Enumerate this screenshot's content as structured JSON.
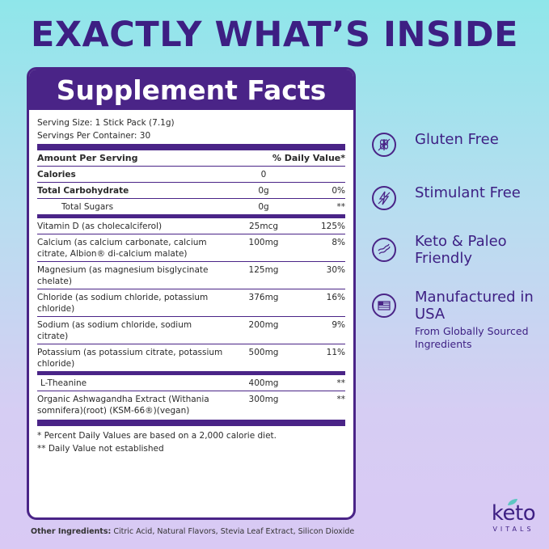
{
  "headline": "EXACTLY WHAT’S INSIDE",
  "facts": {
    "title": "Supplement Facts",
    "serving_size": "Serving Size: 1 Stick Pack (7.1g)",
    "servings_per_container": "Servings Per Container: 30",
    "header_amount": "Amount Per Serving",
    "header_dv": "% Daily Value*",
    "rows": [
      {
        "name": "Calories",
        "amount": "0",
        "dv": ""
      },
      {
        "name": "Total Carbohydrate",
        "amount": "0g",
        "dv": "0%"
      },
      {
        "name": "Total Sugars",
        "amount": "0g",
        "dv": "**"
      },
      {
        "name": "Vitamin D (as cholecalciferol)",
        "amount": "25mcg",
        "dv": "125%"
      },
      {
        "name": "Calcium (as calcium carbonate, calcium citrate, Albion® di-calcium malate)",
        "amount": "100mg",
        "dv": "8%"
      },
      {
        "name": "Magnesium (as magnesium bisglycinate chelate)",
        "amount": "125mg",
        "dv": "30%"
      },
      {
        "name": "Chloride (as sodium chloride, potassium chloride)",
        "amount": "376mg",
        "dv": "16%"
      },
      {
        "name": "Sodium (as sodium chloride, sodium citrate)",
        "amount": "200mg",
        "dv": "9%"
      },
      {
        "name": "Potassium (as potassium citrate, potassium chloride)",
        "amount": "500mg",
        "dv": "11%"
      },
      {
        "name": "L-Theanine",
        "amount": "400mg",
        "dv": "**"
      },
      {
        "name": "Organic Ashwagandha Extract (Withania somnifera)(root) (KSM-66®)(vegan)",
        "amount": "300mg",
        "dv": "**"
      }
    ],
    "footnote1": "* Percent Daily Values are based on a 2,000 calorie diet.",
    "footnote2": "** Daily Value not established"
  },
  "benefits": [
    {
      "label": "Gluten Free",
      "icon": "wheat-icon"
    },
    {
      "label": "Stimulant Free",
      "icon": "lightning-icon"
    },
    {
      "label": "Keto & Paleo Friendly",
      "icon": "bacon-icon"
    },
    {
      "label": "Manufactured in USA",
      "sub": "From Globally Sourced Ingredients",
      "icon": "flag-icon"
    }
  ],
  "logo": {
    "word": "keto",
    "sub": "VITALS"
  },
  "other_ingredients": {
    "label": "Other Ingredients:",
    "text": " Citric Acid, Natural Flavors, Stevia Leaf Extract, Silicon Dioxide"
  },
  "colors": {
    "brand": "#4a2487",
    "headline": "#3d1f83"
  }
}
